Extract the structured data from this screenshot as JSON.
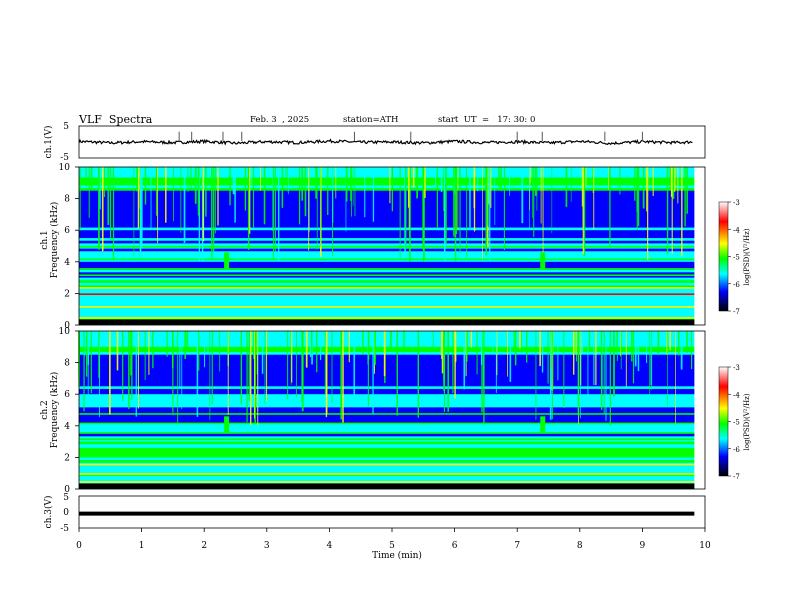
{
  "header": {
    "title": "VLF  Spectra",
    "date": "Feb. 3  , 2025",
    "station": "station=ATH",
    "start_ut": "start  UT  =   17: 30: 0"
  },
  "colorbar": {
    "label": "log(PSD)(V²/Hz)",
    "ticks": [
      "-3",
      "-4",
      "-5",
      "-6",
      "-7"
    ],
    "colors": [
      "#ffffff",
      "#ff0000",
      "#ffff00",
      "#00ff00",
      "#00ffff",
      "#0000ff",
      "#000000"
    ]
  },
  "chart_data": [
    {
      "type": "line",
      "name": "ch.1 waveform",
      "ylabel": "ch.1(V)",
      "ylim": [
        -5,
        5
      ],
      "yticks": [
        "5",
        "-5"
      ],
      "xlim": [
        0,
        10
      ],
      "x": [
        0,
        0.5,
        1,
        1.5,
        2,
        2.5,
        3,
        3.5,
        4,
        4.5,
        5,
        5.5,
        6,
        6.5,
        7,
        7.5,
        8,
        8.5,
        9,
        9.5,
        9.8
      ],
      "y": [
        0.2,
        -0.3,
        0.1,
        -0.2,
        0.2,
        -0.4,
        0.1,
        -0.2,
        0.3,
        -0.1,
        0.0,
        -0.3,
        0.2,
        -0.2,
        0.1,
        -0.3,
        0.2,
        -0.4,
        0.1,
        -0.2,
        0.0
      ],
      "spikes_x": [
        1.6,
        1.8,
        2.3,
        2.6,
        4.4,
        5.3,
        7.0,
        7.4,
        8.4,
        9.0
      ]
    },
    {
      "type": "heatmap",
      "name": "ch.1 spectrogram",
      "ylabel": "Frequency (kHz)",
      "channel_label": "ch.1",
      "ylim": [
        0,
        10
      ],
      "yticks": [
        "0",
        "2",
        "4",
        "6",
        "8",
        "10"
      ],
      "xlim": [
        0,
        9.83
      ],
      "zlim": [
        -7,
        -3
      ],
      "zlabel": "log(PSD)(V²/Hz)",
      "bands_khz": [
        0.5,
        1.2,
        2.0,
        2.4,
        3.2,
        3.6,
        4.2,
        5.0
      ],
      "bursts": [
        {
          "t": 2.35,
          "f": [
            3.5,
            4.6
          ]
        },
        {
          "t": 7.4,
          "f": [
            3.5,
            4.6
          ]
        }
      ]
    },
    {
      "type": "heatmap",
      "name": "ch.2 spectrogram",
      "ylabel": "Frequency (kHz)",
      "channel_label": "ch.2",
      "ylim": [
        0,
        10
      ],
      "yticks": [
        "0",
        "2",
        "4",
        "6",
        "8",
        "10"
      ],
      "xlim": [
        0,
        9.83
      ],
      "zlim": [
        -7,
        -3
      ],
      "zlabel": "log(PSD)(V²/Hz)",
      "bands_khz": [
        0.5,
        1.0,
        1.6,
        2.1,
        2.6,
        3.2,
        3.6,
        4.2,
        4.8
      ],
      "bursts": [
        {
          "t": 2.35,
          "f": [
            3.5,
            4.6
          ]
        },
        {
          "t": 7.4,
          "f": [
            3.5,
            4.6
          ]
        }
      ]
    },
    {
      "type": "line",
      "name": "ch.3 waveform",
      "ylabel": "ch.3(V)",
      "ylim": [
        -5,
        5
      ],
      "yticks": [
        "5",
        "0",
        "-5"
      ],
      "xlim": [
        0,
        10
      ],
      "xlabel": "Time  (min)",
      "xticks": [
        "0",
        "1",
        "2",
        "3",
        "4",
        "5",
        "6",
        "7",
        "8",
        "9",
        "10"
      ],
      "x": [
        0,
        9.83
      ],
      "y": [
        -0.5,
        -0.5
      ]
    }
  ]
}
